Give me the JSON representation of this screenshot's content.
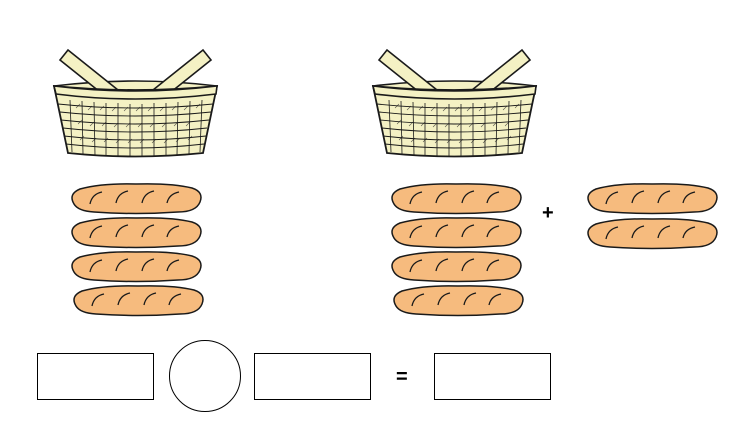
{
  "palette": {
    "basket_fill": "#f4f1c4",
    "basket_stroke": "#1a1a1a",
    "bread_fill": "#f6bb7e",
    "bread_stroke": "#1a1a1a",
    "background": "#ffffff"
  },
  "left_group": {
    "basket_icon": "basket-icon",
    "bread_count": 4
  },
  "right_group": {
    "basket_icon": "basket-icon",
    "bread_count": 4,
    "added_bread_count": 2,
    "operator": "+"
  },
  "equation": {
    "operand_1": "",
    "operator_slot": "",
    "operand_2": "",
    "equals_sign": "=",
    "result": ""
  }
}
